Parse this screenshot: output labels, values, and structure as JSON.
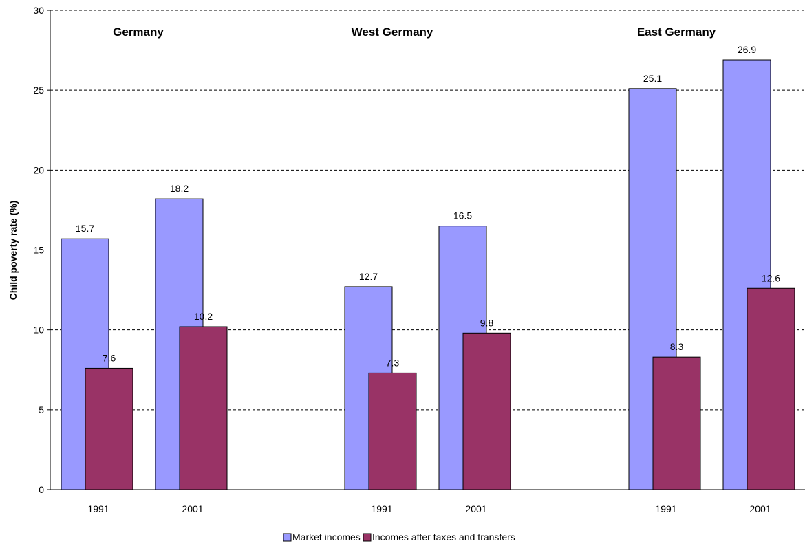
{
  "chart_data": {
    "type": "bar",
    "ylabel": "Child poverty rate (%)",
    "ylim": [
      0,
      30
    ],
    "yticks": [
      0,
      5,
      10,
      15,
      20,
      25,
      30
    ],
    "grid": "horizontal-dashed",
    "legend_position": "bottom-center",
    "groups": [
      {
        "title": "Germany",
        "categories": [
          "1991",
          "2001"
        ]
      },
      {
        "title": "West Germany",
        "categories": [
          "1991",
          "2001"
        ]
      },
      {
        "title": "East Germany",
        "categories": [
          "1991",
          "2001"
        ]
      }
    ],
    "series": [
      {
        "name": "Market incomes",
        "color": "#9999ff",
        "values": [
          15.7,
          18.2,
          12.7,
          16.5,
          25.1,
          26.9
        ],
        "labels": [
          "15.7",
          "18.2",
          "12.7",
          "16.5",
          "25.1",
          "26.9"
        ]
      },
      {
        "name": "Incomes after taxes and transfers",
        "color": "#993366",
        "values": [
          7.6,
          10.2,
          7.3,
          9.8,
          8.3,
          12.6
        ],
        "labels": [
          "7.6",
          "10.2",
          "7.3",
          "9.8",
          "8.3",
          "12.6"
        ]
      }
    ]
  }
}
